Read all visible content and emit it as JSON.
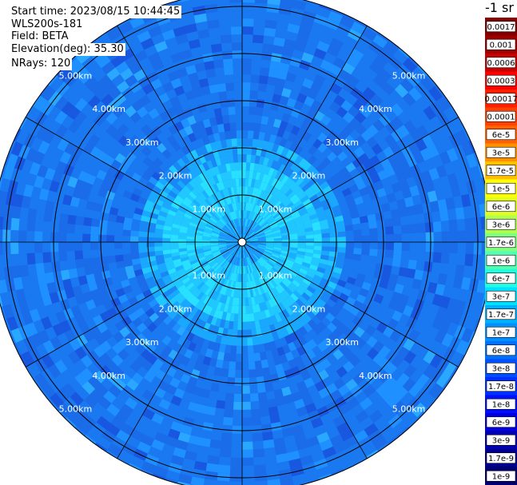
{
  "header": {
    "start_time": "Start time: 2023/08/15 10:44:45",
    "device": "WLS200s-181",
    "field": "Field: BETA",
    "elevation": "Elevation(deg): 35.30",
    "nrays": "NRays: 120"
  },
  "colorbar": {
    "title": "-1 sr",
    "entries": [
      {
        "label": "0.0017",
        "color": "#800000"
      },
      {
        "label": "0.001",
        "color": "#a00000"
      },
      {
        "label": "0.0006",
        "color": "#c80000"
      },
      {
        "label": "0.0003",
        "color": "#ff0000"
      },
      {
        "label": "0.00017",
        "color": "#ff2000"
      },
      {
        "label": "0.0001",
        "color": "#ff4000"
      },
      {
        "label": "6e-5",
        "color": "#ff6000"
      },
      {
        "label": "3e-5",
        "color": "#ff9000"
      },
      {
        "label": "1.7e-5",
        "color": "#ffc000"
      },
      {
        "label": "1e-5",
        "color": "#ffff00"
      },
      {
        "label": "6e-6",
        "color": "#e0ff20"
      },
      {
        "label": "3e-6",
        "color": "#b0ff50"
      },
      {
        "label": "1.7e-6",
        "color": "#80ff80"
      },
      {
        "label": "1e-6",
        "color": "#50ffb0"
      },
      {
        "label": "6e-7",
        "color": "#20ffe0"
      },
      {
        "label": "3e-7",
        "color": "#00e0ff"
      },
      {
        "label": "1.7e-7",
        "color": "#00b0ff"
      },
      {
        "label": "1e-7",
        "color": "#0090ff"
      },
      {
        "label": "6e-8",
        "color": "#0070ff"
      },
      {
        "label": "3e-8",
        "color": "#0050ff"
      },
      {
        "label": "1.7e-8",
        "color": "#0030ff"
      },
      {
        "label": "1e-8",
        "color": "#0010ff"
      },
      {
        "label": "6e-9",
        "color": "#0000e0"
      },
      {
        "label": "3e-9",
        "color": "#0000b0"
      },
      {
        "label": "1.7e-9",
        "color": "#000090"
      },
      {
        "label": "1e-9",
        "color": "#000070"
      }
    ]
  },
  "chart_data": {
    "type": "heatmap",
    "projection": "polar",
    "range_rings_km": [
      1,
      2,
      3,
      4,
      5
    ],
    "ring_labels": [
      "1.00km",
      "2.00km",
      "3.00km",
      "4.00km",
      "5.00km"
    ],
    "spoke_count": 12,
    "max_range_km": 5.3,
    "center_zone": {
      "range_km": [
        0,
        2.0
      ],
      "dominant_color": "#20d8ff"
    },
    "outer_zone": {
      "range_km": [
        2.0,
        5.3
      ],
      "dominant_color": "#1a78f0"
    }
  }
}
